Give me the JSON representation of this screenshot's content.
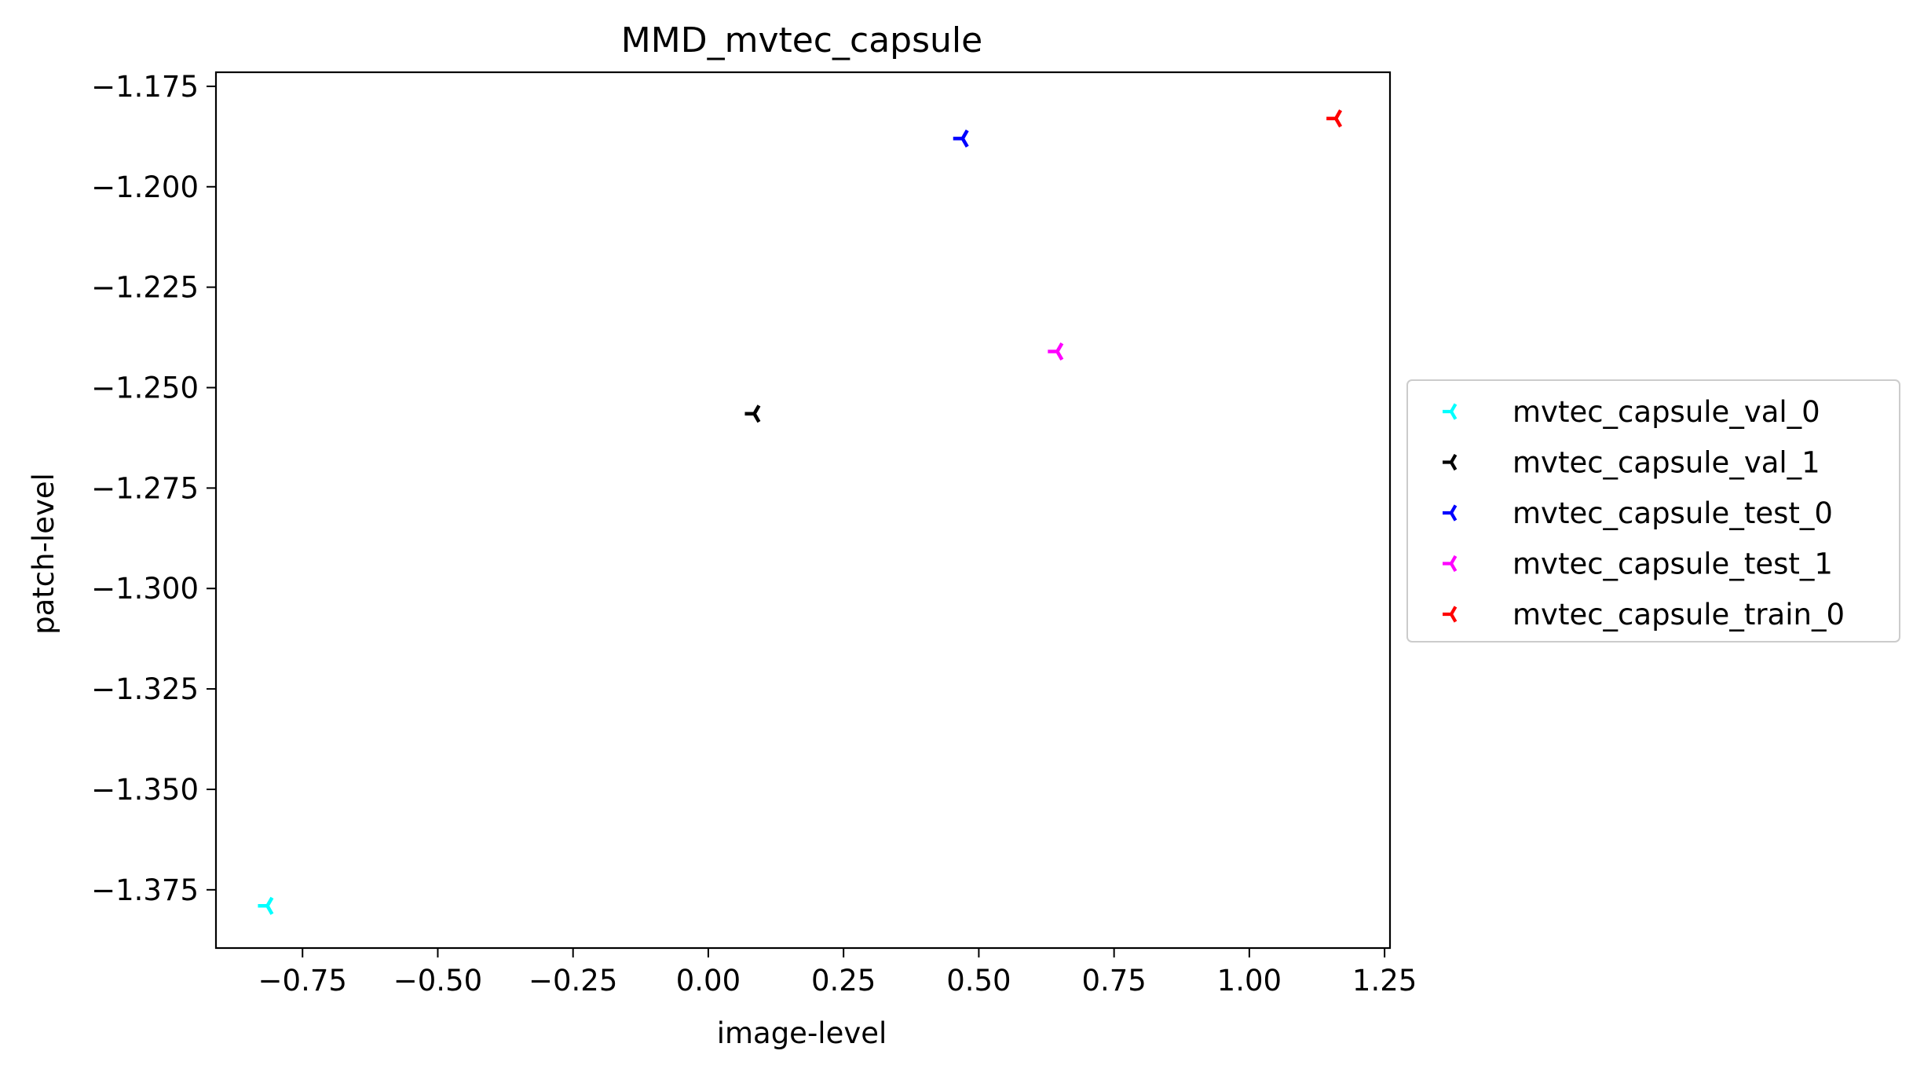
{
  "chart_data": {
    "type": "scatter",
    "title": "MMD_mvtec_capsule",
    "xlabel": "image-level",
    "ylabel": "patch-level",
    "xlim": [
      -0.91,
      1.26
    ],
    "ylim": [
      -1.3895,
      -1.1715
    ],
    "xticks": [
      -0.75,
      -0.5,
      -0.25,
      0.0,
      0.25,
      0.5,
      0.75,
      1.0,
      1.25
    ],
    "xtick_labels": [
      "−0.75",
      "−0.50",
      "−0.25",
      "0.00",
      "0.25",
      "0.50",
      "0.75",
      "1.00",
      "1.25"
    ],
    "yticks": [
      -1.175,
      -1.2,
      -1.225,
      -1.25,
      -1.275,
      -1.3,
      -1.325,
      -1.35,
      -1.375
    ],
    "ytick_labels": [
      "−1.175",
      "−1.200",
      "−1.225",
      "−1.250",
      "−1.275",
      "−1.300",
      "−1.325",
      "−1.350",
      "−1.375"
    ],
    "grid": false,
    "legend_position": "outside right",
    "marker": "tri_left",
    "series": [
      {
        "name": "mvtec_capsule_val_0",
        "color": "#00ffff",
        "x": [
          -0.815
        ],
        "y": [
          -1.379
        ]
      },
      {
        "name": "mvtec_capsule_val_1",
        "color": "#000000",
        "x": [
          0.085
        ],
        "y": [
          -1.2565
        ]
      },
      {
        "name": "mvtec_capsule_test_0",
        "color": "#0000ff",
        "x": [
          0.47
        ],
        "y": [
          -1.188
        ]
      },
      {
        "name": "mvtec_capsule_test_1",
        "color": "#ff00ff",
        "x": [
          0.645
        ],
        "y": [
          -1.241
        ]
      },
      {
        "name": "mvtec_capsule_train_0",
        "color": "#ff0000",
        "x": [
          1.16
        ],
        "y": [
          -1.183
        ]
      }
    ]
  }
}
